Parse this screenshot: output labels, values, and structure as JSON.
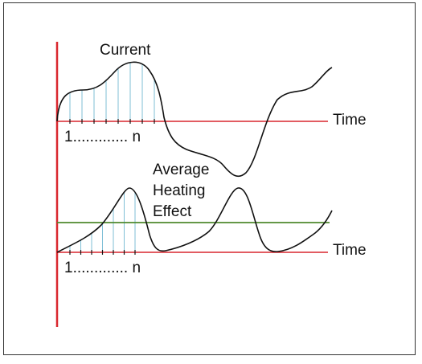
{
  "figure": {
    "top_curve_label": "Current",
    "top_axis_label": "Time",
    "top_sample_label": "1............. n",
    "bottom_curve_label_lines": [
      "Average",
      "Heating",
      "Effect"
    ],
    "bottom_axis_label": "Time",
    "bottom_sample_label": "1............. n"
  },
  "colors": {
    "frame": "#333333",
    "vertical_axis": "#d9272e",
    "time_axis": "#d9272e",
    "curve": "#111111",
    "sample_lines": "#7fbfd6",
    "average_line": "#4f8a2e"
  }
}
